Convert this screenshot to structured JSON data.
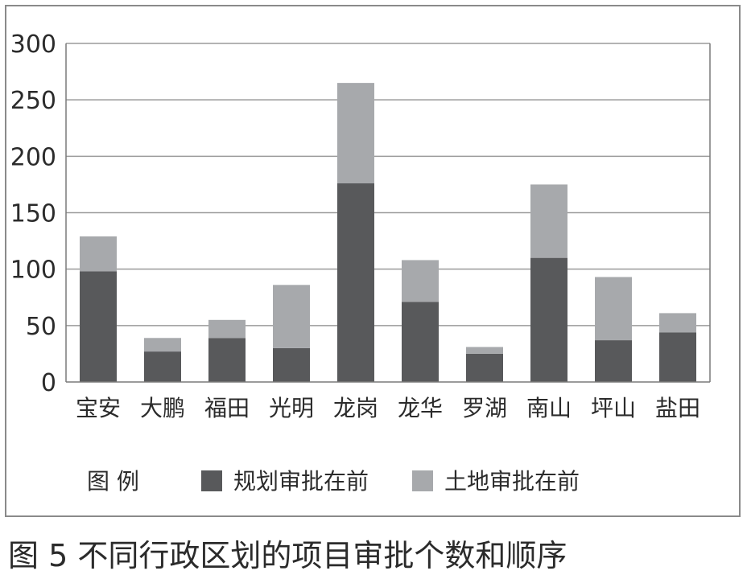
{
  "caption": "图 5 不同行政区划的项目审批个数和顺序",
  "legend": {
    "title": "图 例",
    "position": "bottom"
  },
  "chart_data": {
    "type": "bar",
    "stacked": true,
    "categories": [
      "宝安",
      "大鹏",
      "福田",
      "光明",
      "龙岗",
      "龙华",
      "罗湖",
      "南山",
      "坪山",
      "盐田"
    ],
    "series": [
      {
        "name": "规划审批在前",
        "color": "#58595b",
        "values": [
          98,
          27,
          39,
          30,
          176,
          71,
          25,
          110,
          37,
          44
        ]
      },
      {
        "name": "土地审批在前",
        "color": "#a7a9ac",
        "values": [
          31,
          12,
          16,
          56,
          89,
          37,
          6,
          65,
          56,
          17
        ]
      }
    ],
    "yticks": [
      "0",
      "50",
      "100",
      "150",
      "200",
      "250",
      "300"
    ],
    "ylim": [
      0,
      300
    ],
    "grid": true
  }
}
